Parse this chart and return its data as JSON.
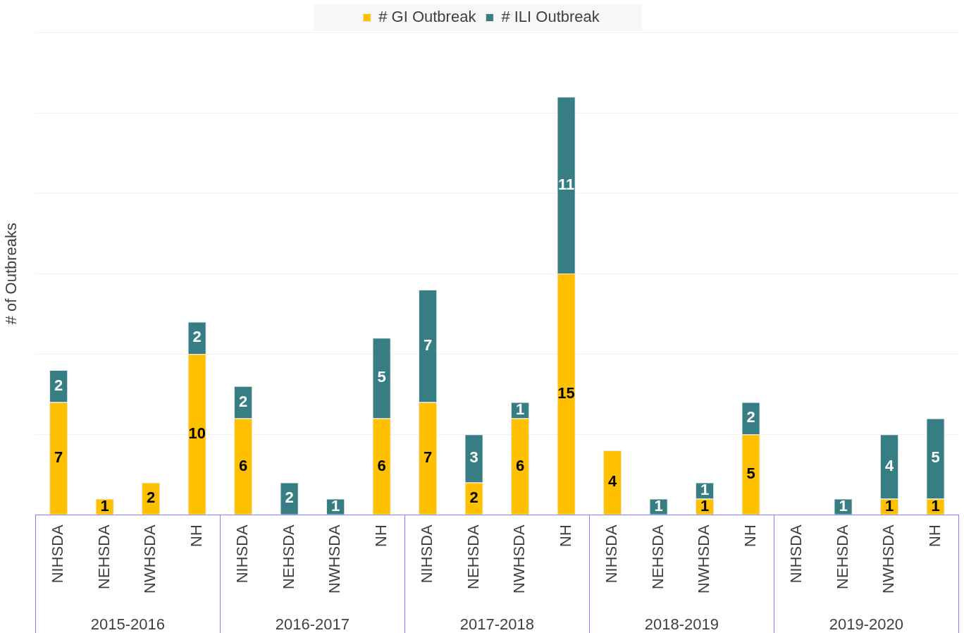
{
  "chart_data": {
    "type": "bar",
    "stacked": true,
    "ylabel": "# of Outbreaks",
    "categories": [
      "NIHSDA",
      "NEHSDA",
      "NWHSDA",
      "NH",
      "NIHSDA",
      "NEHSDA",
      "NWHSDA",
      "NH",
      "NIHSDA",
      "NEHSDA",
      "NWHSDA",
      "NH",
      "NIHSDA",
      "NEHSDA",
      "NWHSDA",
      "NH",
      "NIHSDA",
      "NEHSDA",
      "NWHSDA",
      "NH"
    ],
    "series": [
      {
        "name": "# GI Outbreak",
        "color": "#ffc000",
        "values": [
          7,
          1,
          2,
          10,
          6,
          null,
          null,
          6,
          7,
          2,
          6,
          15,
          4,
          null,
          1,
          5,
          null,
          null,
          1,
          1
        ]
      },
      {
        "name": "# ILI Outbreak",
        "color": "#367e84",
        "values": [
          2,
          null,
          null,
          2,
          2,
          2,
          1,
          5,
          7,
          3,
          1,
          11,
          null,
          1,
          1,
          2,
          null,
          1,
          4,
          5
        ]
      }
    ],
    "annotations": [
      "2015-2016",
      "2016-2017",
      "2017-2018",
      "2018-2019",
      "2019-2020"
    ],
    "ylim": [
      0,
      30
    ],
    "yticks": [
      0,
      5,
      10,
      15,
      20,
      25,
      30
    ],
    "grid": "y",
    "tick_labels": "x",
    "legend": "top",
    "data_labels": true
  }
}
